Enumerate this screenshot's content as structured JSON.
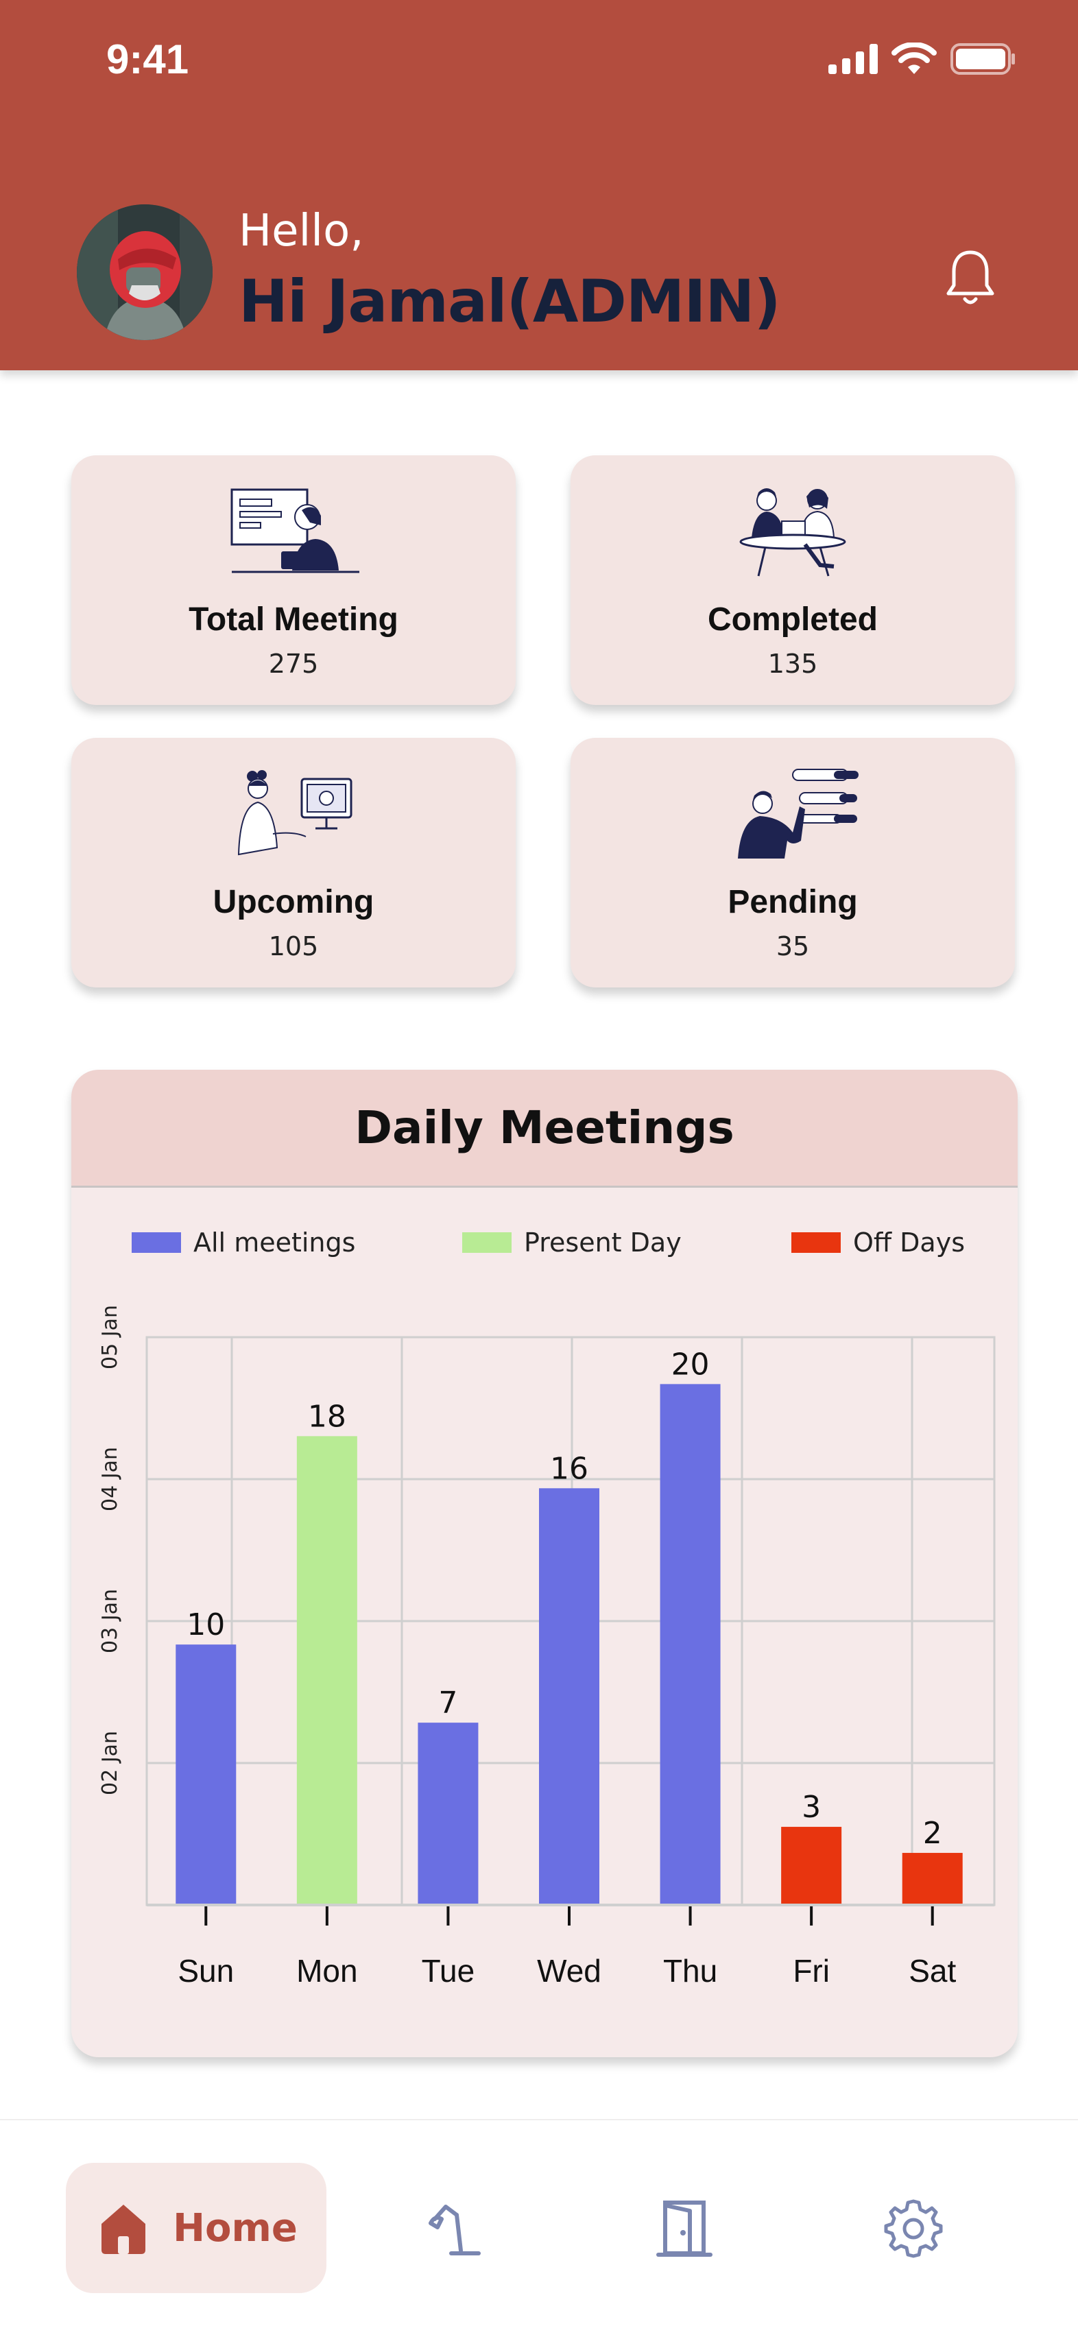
{
  "status_bar": {
    "time": "9:41"
  },
  "header": {
    "greeting": "Hello,",
    "user_name": "Hi Jamal(ADMIN)"
  },
  "stats": [
    {
      "label": "Total Meeting",
      "value": "275",
      "icon": "presentation-illustration"
    },
    {
      "label": "Completed",
      "value": "135",
      "icon": "meeting-table-illustration"
    },
    {
      "label": "Upcoming",
      "value": "105",
      "icon": "online-shopping-illustration"
    },
    {
      "label": "Pending",
      "value": "35",
      "icon": "task-list-illustration"
    }
  ],
  "chart_data": {
    "type": "bar",
    "title": "Daily Meetings",
    "categories": [
      "Sun",
      "Mon",
      "Tue",
      "Wed",
      "Thu",
      "Fri",
      "Sat"
    ],
    "values": [
      10,
      18,
      7,
      16,
      20,
      3,
      2
    ],
    "bar_kinds": [
      "all",
      "present",
      "all",
      "all",
      "all",
      "off",
      "off"
    ],
    "y_tick_labels": [
      "02 Jan",
      "03 Jan",
      "04 Jan",
      "05 Jan"
    ],
    "ylim": [
      0,
      20
    ],
    "grid": true,
    "legend_position": "top",
    "legend": [
      {
        "name": "All meetings",
        "color": "#6a6fe2"
      },
      {
        "name": "Present Day",
        "color": "#b8eb94"
      },
      {
        "name": "Off Days",
        "color": "#e8350f"
      }
    ]
  },
  "nav": {
    "home_label": "Home"
  },
  "colors": {
    "accent": "#b34d3e",
    "card": "#f3e4e2",
    "name_text": "#16213b"
  }
}
